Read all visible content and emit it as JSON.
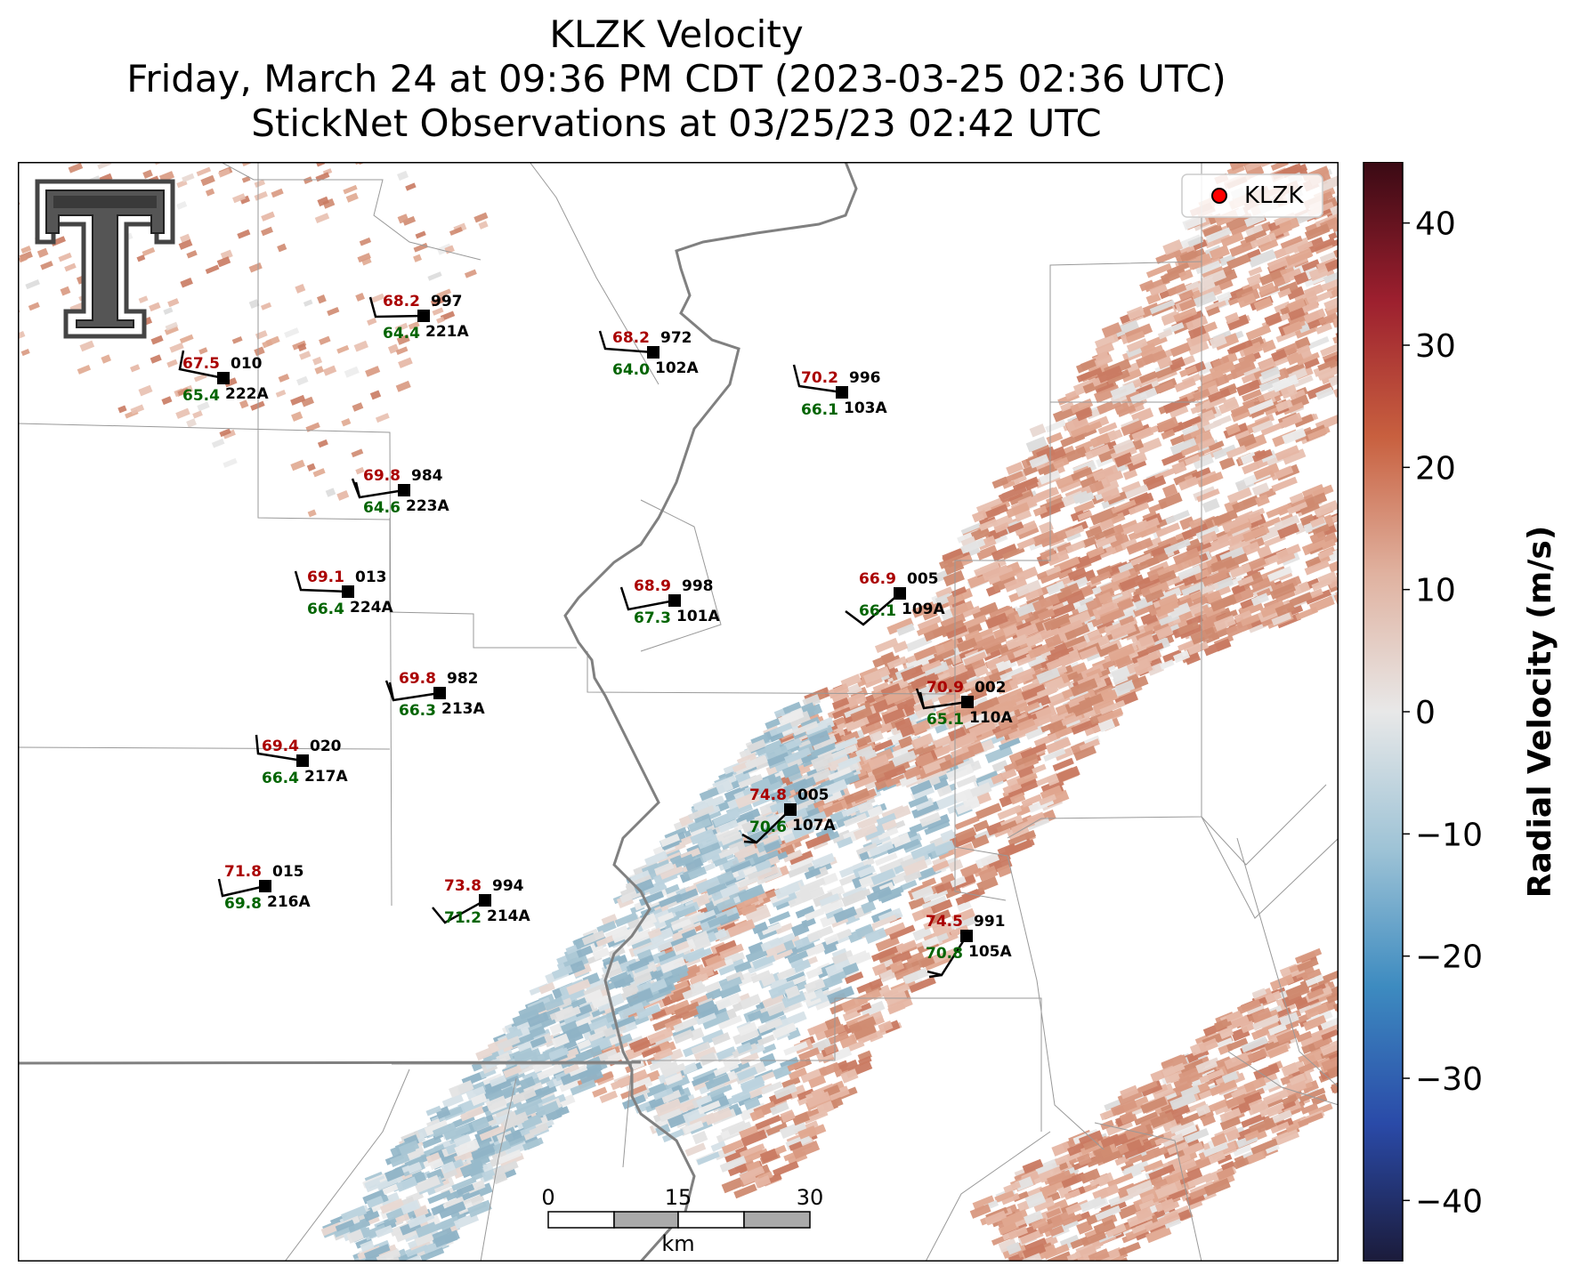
{
  "title": {
    "line1": "KLZK Velocity",
    "line2": "Friday, March 24 at 09:36 PM CDT (2023-03-25 02:36 UTC)",
    "line3": "StickNet Observations at 03/25/23 02:42 UTC"
  },
  "legend": {
    "label": "KLZK",
    "marker_color": "#ff0000"
  },
  "colorbar": {
    "label": "Radial Velocity (m/s)",
    "ticks": [
      "40",
      "30",
      "20",
      "10",
      "0",
      "−10",
      "−20",
      "−30",
      "−40"
    ],
    "range": [
      -45,
      45
    ],
    "colors": [
      "#1b1b3a",
      "#2a4aa8",
      "#3d8bc0",
      "#9ec3d6",
      "#e8e8e8",
      "#e0b2a0",
      "#c8603f",
      "#9c1f2e",
      "#3a0a14"
    ]
  },
  "scale_bar": {
    "ticks": [
      "0",
      "15",
      "30"
    ],
    "unit": "km"
  },
  "logo": {
    "name": "Texas Tech Double T",
    "text": "T"
  },
  "stations": [
    {
      "id": "221A",
      "temp": "68.2",
      "dew": "64.4",
      "pres": "997"
    },
    {
      "id": "222A",
      "temp": "67.5",
      "dew": "65.4",
      "pres": "010"
    },
    {
      "id": "102A",
      "temp": "68.2",
      "dew": "64.0",
      "pres": "972"
    },
    {
      "id": "103A",
      "temp": "70.2",
      "dew": "66.1",
      "pres": "996"
    },
    {
      "id": "223A",
      "temp": "69.8",
      "dew": "64.6",
      "pres": "984"
    },
    {
      "id": "224A",
      "temp": "69.1",
      "dew": "66.4",
      "pres": "013"
    },
    {
      "id": "101A",
      "temp": "68.9",
      "dew": "67.3",
      "pres": "998"
    },
    {
      "id": "109A",
      "temp": "66.9",
      "dew": "66.1",
      "pres": "005"
    },
    {
      "id": "213A",
      "temp": "69.8",
      "dew": "66.3",
      "pres": "982"
    },
    {
      "id": "110A",
      "temp": "70.9",
      "dew": "65.1",
      "pres": "002"
    },
    {
      "id": "217A",
      "temp": "69.4",
      "dew": "66.4",
      "pres": "020"
    },
    {
      "id": "107A",
      "temp": "74.8",
      "dew": "70.6",
      "pres": "005"
    },
    {
      "id": "216A",
      "temp": "71.8",
      "dew": "69.8",
      "pres": "015"
    },
    {
      "id": "214A",
      "temp": "73.8",
      "dew": "71.2",
      "pres": "994"
    },
    {
      "id": "105A",
      "temp": "74.5",
      "dew": "70.8",
      "pres": "991"
    }
  ]
}
